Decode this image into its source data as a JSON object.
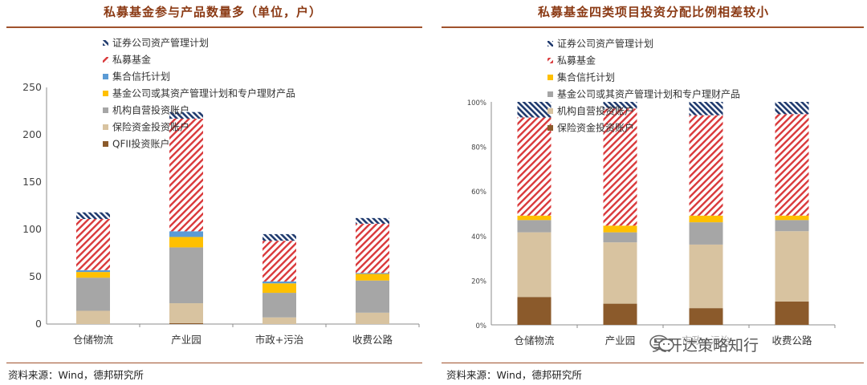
{
  "left": {
    "title": "私募基金参与产品数量多（单位，户）",
    "source": "资料来源：Wind，德邦研究所"
  },
  "right": {
    "title": "私募基金四类项目投资分配比例相差较小",
    "source": "资料来源：Wind，德邦研究所"
  },
  "watermark": "吴开达策略知行",
  "colors": {
    "qfii": "#8b5a2b",
    "insurance": "#d8c3a0",
    "proprietary": "#a6a6a6",
    "fund_company": "#ffc000",
    "trust": "#5b9bd5",
    "private_fund": "#d9383a",
    "securities": "#1f3a6e"
  },
  "chart_data": [
    {
      "type": "bar",
      "stacked": true,
      "title": "私募基金参与产品数量多（单位，户）",
      "categories": [
        "仓储物流",
        "产业园",
        "市政+污治",
        "收费公路"
      ],
      "ylim": [
        0,
        250
      ],
      "yticks": [
        "0",
        "50",
        "100",
        "150",
        "200",
        "250"
      ],
      "series": [
        {
          "name": "QFII投资账户",
          "key": "qfii",
          "values": [
            0,
            1,
            0,
            0
          ]
        },
        {
          "name": "保险资金投资账户",
          "key": "insurance",
          "values": [
            14,
            21,
            7,
            12
          ]
        },
        {
          "name": "机构自营投资账户",
          "key": "proprietary",
          "values": [
            35,
            59,
            26,
            34
          ]
        },
        {
          "name": "基金公司或其资产管理计划和专户理财产品",
          "key": "fund_company",
          "values": [
            6,
            11,
            10,
            7
          ]
        },
        {
          "name": "集合信托计划",
          "key": "trust",
          "values": [
            2,
            6,
            2,
            1
          ]
        },
        {
          "name": "私募基金",
          "key": "private_fund",
          "values": [
            54,
            119,
            43,
            52
          ]
        },
        {
          "name": "证券公司资产管理计划",
          "key": "securities",
          "values": [
            7,
            7,
            7,
            6
          ]
        }
      ],
      "legend": [
        {
          "name": "证券公司资产管理计划",
          "key": "securities"
        },
        {
          "name": "私募基金",
          "key": "private_fund"
        },
        {
          "name": "集合信托计划",
          "key": "trust"
        },
        {
          "name": "基金公司或其资产管理计划和专户理财产品",
          "key": "fund_company"
        },
        {
          "name": "机构自营投资账户",
          "key": "proprietary"
        },
        {
          "name": "保险资金投资账户",
          "key": "insurance"
        },
        {
          "name": "QFII投资账户",
          "key": "qfii"
        }
      ],
      "legend_position": "top-left"
    },
    {
      "type": "bar",
      "stacked": true,
      "percent": true,
      "title": "私募基金四类项目投资分配比例相差较小",
      "categories": [
        "仓储物流",
        "产业园",
        "市政+污治",
        "收费公路"
      ],
      "ylim": [
        0,
        100
      ],
      "yticks": [
        "0%",
        "20%",
        "40%",
        "60%",
        "80%",
        "100%"
      ],
      "series": [
        {
          "name": "保险资金投资账户",
          "key": "qfii",
          "values": [
            12.5,
            9.5,
            7.5,
            10.5
          ]
        },
        {
          "name": "机构自营投资账户",
          "key": "insurance",
          "values": [
            29,
            27.5,
            28.5,
            31.5
          ]
        },
        {
          "name": "基金公司或其资产管理计划和专户理财产品",
          "key": "proprietary",
          "values": [
            5.5,
            4.5,
            10,
            5
          ]
        },
        {
          "name": "集合信托计划",
          "key": "fund_company",
          "values": [
            2,
            3,
            3,
            2
          ]
        },
        {
          "name": "私募基金",
          "key": "private_fund",
          "values": [
            44,
            52.5,
            45,
            45.5
          ]
        },
        {
          "name": "证券公司资产管理计划",
          "key": "securities",
          "values": [
            7,
            3,
            6,
            5.5
          ]
        }
      ],
      "legend": [
        {
          "name": "证券公司资产管理计划",
          "key": "securities"
        },
        {
          "name": "私募基金",
          "key": "private_fund"
        },
        {
          "name": "集合信托计划",
          "key": "fund_company"
        },
        {
          "name": "基金公司或其资产管理计划和专户理财产品",
          "key": "proprietary"
        },
        {
          "name": "机构自营投资账户",
          "key": "insurance"
        },
        {
          "name": "保险资金投资账户",
          "key": "qfii"
        }
      ],
      "legend_position": "top-left"
    }
  ]
}
